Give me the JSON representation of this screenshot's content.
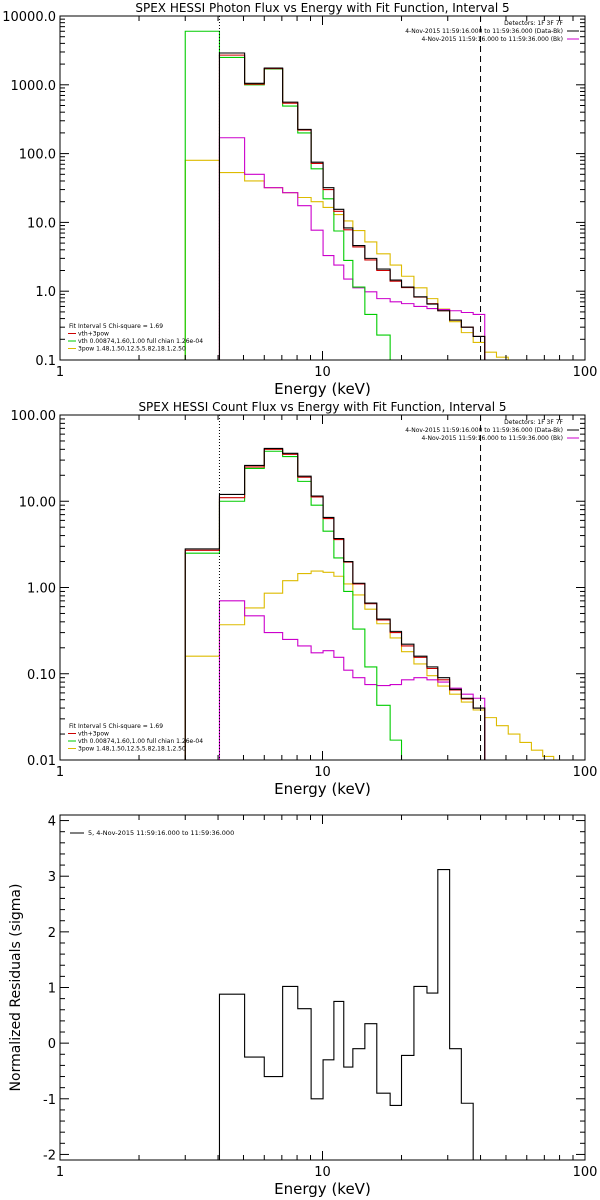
{
  "chart_data": [
    {
      "type": "line",
      "title": "SPEX HESSI Photon Flux vs Energy with Fit Function, Interval 5",
      "xlabel": "Energy (keV)",
      "ylabel": "",
      "x_scale": "log",
      "y_scale": "log",
      "xlim": [
        1,
        100
      ],
      "ylim": [
        0.1,
        10000
      ],
      "x_ticks": [
        {
          "v": 1,
          "label": "1"
        },
        {
          "v": 10,
          "label": "10"
        },
        {
          "v": 100,
          "label": "100"
        }
      ],
      "y_ticks": [
        {
          "v": 0.1,
          "label": "0.1"
        },
        {
          "v": 1,
          "label": "1.0"
        },
        {
          "v": 10,
          "label": "10.0"
        },
        {
          "v": 100,
          "label": "100.0"
        },
        {
          "v": 1000,
          "label": "1000.0"
        },
        {
          "v": 10000,
          "label": "10000.0"
        }
      ],
      "vlines": [
        {
          "x": 4.05,
          "style": "dotted",
          "color": "#000000"
        },
        {
          "x": 40.0,
          "style": "dashed",
          "color": "#000000"
        }
      ],
      "info_right": [
        "Detectors: 1F 3F 7F",
        "4-Nov-2015 11:59:16.000 to 11:59:36.000 (Data-Bk)",
        "4-Nov-2015 11:59:16.000 to 11:59:36.000 (Bk)"
      ],
      "legend": [
        "Fit Interval 5   Chi-square = 1.69",
        "vth+3pow",
        "vth 0.00874,1.60,1.00  full chian 1.26e-04",
        "3pow 1.48,1.50,12.5,5.82,18.1,2.50"
      ],
      "legend_colors": [
        "#000000",
        "#cc0000",
        "#00cc00",
        "#ddbb00"
      ],
      "info_colors": [
        "#000000",
        "#000000",
        "#cc00cc"
      ],
      "edges": [
        3.0,
        4.05,
        5.05,
        6.0,
        7.05,
        8.05,
        9.05,
        10.05,
        11.05,
        12.05,
        13.05,
        14.5,
        16.1,
        18.1,
        20.0,
        22.3,
        25.0,
        27.5,
        30.5,
        33.8,
        37.5,
        41.5,
        46.0,
        51.0,
        56.5
      ],
      "series": [
        {
          "color": "#ddbb00",
          "values": [
            80,
            53,
            40,
            32,
            27,
            23,
            20,
            16.5,
            13,
            10.5,
            7.6,
            5.2,
            3.5,
            2.4,
            1.65,
            1.12,
            0.78,
            0.55,
            0.36,
            0.25,
            0.18,
            0.13,
            0.11,
            0.1
          ]
        },
        {
          "color": "#cc00cc",
          "values": [
            null,
            170,
            50,
            32,
            27,
            17.5,
            7.7,
            3.3,
            2.4,
            1.5,
            1.12,
            0.98,
            0.78,
            0.7,
            0.66,
            0.6,
            0.56,
            0.54,
            0.52,
            0.49,
            0.46,
            null,
            null,
            null
          ]
        },
        {
          "color": "#00cc00",
          "values": [
            6000,
            2500,
            1000,
            1700,
            490,
            200,
            60,
            22,
            7.5,
            2.8,
            1.15,
            0.46,
            0.23,
            null,
            null,
            null,
            null,
            null,
            null,
            null,
            null,
            null,
            null,
            null
          ]
        },
        {
          "color": "#cc0000",
          "values": [
            null,
            2700,
            1020,
            1720,
            540,
            220,
            72,
            30,
            14.5,
            7.8,
            4.4,
            2.85,
            2,
            1.4,
            1.13,
            0.82,
            0.66,
            0.52,
            0.38,
            0.3,
            0.22,
            null,
            null,
            null
          ]
        },
        {
          "color": "#000000",
          "values": [
            null,
            2900,
            1050,
            1750,
            560,
            225,
            75,
            32,
            15.5,
            8.3,
            4.6,
            3,
            2.1,
            1.45,
            1.15,
            0.83,
            0.65,
            0.52,
            0.38,
            0.3,
            0.22,
            null,
            null,
            null
          ]
        }
      ]
    },
    {
      "type": "line",
      "title": "SPEX HESSI Count Flux vs Energy with Fit Function, Interval 5",
      "xlabel": "Energy (keV)",
      "ylabel": "",
      "x_scale": "log",
      "y_scale": "log",
      "xlim": [
        1,
        100
      ],
      "ylim": [
        0.01,
        100
      ],
      "x_ticks": [
        {
          "v": 1,
          "label": "1"
        },
        {
          "v": 10,
          "label": "10"
        },
        {
          "v": 100,
          "label": "100"
        }
      ],
      "y_ticks": [
        {
          "v": 0.01,
          "label": "0.01"
        },
        {
          "v": 0.1,
          "label": "0.10"
        },
        {
          "v": 1,
          "label": "1.00"
        },
        {
          "v": 10,
          "label": "10.00"
        },
        {
          "v": 100,
          "label": "100.00"
        }
      ],
      "vlines": [
        {
          "x": 4.05,
          "style": "dotted",
          "color": "#000000"
        },
        {
          "x": 40.0,
          "style": "dashed",
          "color": "#000000"
        }
      ],
      "info_right": [
        "Detectors: 1F 3F 7F",
        "4-Nov-2015 11:59:16.000 to 11:59:36.000 (Data-Bk)",
        "4-Nov-2015 11:59:16.000 to 11:59:36.000 (Bk)"
      ],
      "legend": [
        "Fit Interval 5   Chi-square = 1.69",
        "vth+3pow",
        "vth 0.00874,1.60,1.00  full chian 1.26e-04",
        "3pow 1.48,1.50,12.5,5.82,18.1,2.50"
      ],
      "legend_colors": [
        "#000000",
        "#cc0000",
        "#00cc00",
        "#ddbb00"
      ],
      "info_colors": [
        "#000000",
        "#000000",
        "#cc00cc"
      ],
      "edges": [
        3.0,
        4.05,
        5.05,
        6.0,
        7.05,
        8.05,
        9.05,
        10.05,
        11.05,
        12.05,
        13.05,
        14.5,
        16.1,
        18.1,
        20.0,
        22.3,
        25.0,
        27.5,
        30.5,
        33.8,
        37.5,
        41.5,
        46.0,
        51.0,
        56.5,
        62.5,
        69.0,
        76.0
      ],
      "series": [
        {
          "color": "#ddbb00",
          "values": [
            0.16,
            0.37,
            0.58,
            0.86,
            1.2,
            1.45,
            1.55,
            1.5,
            1.35,
            1.1,
            0.82,
            0.56,
            0.38,
            0.26,
            0.18,
            0.13,
            0.095,
            0.072,
            0.058,
            0.047,
            0.038,
            0.031,
            0.025,
            0.02,
            0.016,
            0.013,
            0.011
          ]
        },
        {
          "color": "#cc00cc",
          "values": [
            null,
            0.7,
            0.47,
            0.3,
            0.25,
            0.21,
            0.175,
            0.185,
            0.155,
            0.11,
            0.09,
            0.075,
            0.073,
            0.075,
            0.085,
            0.09,
            0.085,
            0.08,
            0.068,
            0.058,
            0.052,
            null,
            null,
            null,
            null,
            null,
            null
          ]
        },
        {
          "color": "#00cc00",
          "values": [
            2.5,
            10,
            24,
            38,
            33,
            17,
            9,
            4.5,
            2.2,
            0.9,
            0.33,
            0.12,
            0.043,
            0.017,
            null,
            null,
            null,
            null,
            null,
            null,
            null,
            null,
            null,
            null,
            null,
            null,
            null
          ]
        },
        {
          "color": "#cc0000",
          "values": [
            2.7,
            11,
            25,
            40,
            35,
            19,
            11.2,
            6.3,
            3.6,
            1.97,
            1.1,
            0.65,
            0.42,
            0.3,
            0.21,
            0.155,
            0.115,
            0.085,
            0.065,
            0.051,
            0.04,
            null,
            null,
            null,
            null,
            null,
            null
          ]
        },
        {
          "color": "#000000",
          "values": [
            2.8,
            12,
            26,
            41,
            36,
            19.5,
            11.5,
            6.5,
            3.7,
            2.0,
            1.12,
            0.66,
            0.43,
            0.31,
            0.22,
            0.16,
            0.12,
            0.09,
            0.066,
            0.052,
            0.04,
            null,
            null,
            null,
            null,
            null,
            null
          ]
        }
      ]
    },
    {
      "type": "line",
      "title": "",
      "xlabel": "Energy (keV)",
      "ylabel": "Normalized Residuals (sigma)",
      "x_scale": "log",
      "y_scale": "linear",
      "xlim": [
        1,
        100
      ],
      "ylim": [
        -2.1,
        4.1
      ],
      "x_ticks": [
        {
          "v": 1,
          "label": "1"
        },
        {
          "v": 10,
          "label": "10"
        },
        {
          "v": 100,
          "label": "100"
        }
      ],
      "y_ticks": [
        {
          "v": -2,
          "label": "-2"
        },
        {
          "v": -1,
          "label": "-1"
        },
        {
          "v": 0,
          "label": "0"
        },
        {
          "v": 1,
          "label": "1"
        },
        {
          "v": 2,
          "label": "2"
        },
        {
          "v": 3,
          "label": "3"
        },
        {
          "v": 4,
          "label": "4"
        }
      ],
      "vlines": [],
      "info_right": [],
      "info_colors": [],
      "legend": [
        "5,  4-Nov-2015 11:59:16.000 to 11:59:36.000"
      ],
      "legend_colors": [
        "#000000"
      ],
      "legend_position": "top-left",
      "edges": [
        4.05,
        5.05,
        6.0,
        7.05,
        8.05,
        9.05,
        10.05,
        11.05,
        12.05,
        13.05,
        14.5,
        16.1,
        18.1,
        20.0,
        22.3,
        25.0,
        27.5,
        30.5,
        33.8,
        37.5,
        41.5
      ],
      "baseline": -2.1,
      "series": [
        {
          "color": "#000000",
          "values": [
            0.88,
            -0.25,
            -0.6,
            1.02,
            0.62,
            -1.0,
            -0.3,
            0.75,
            -0.43,
            -0.1,
            0.35,
            -0.9,
            -1.12,
            -0.22,
            1.02,
            0.9,
            3.12,
            -0.1,
            -1.08,
            null
          ]
        }
      ]
    }
  ]
}
